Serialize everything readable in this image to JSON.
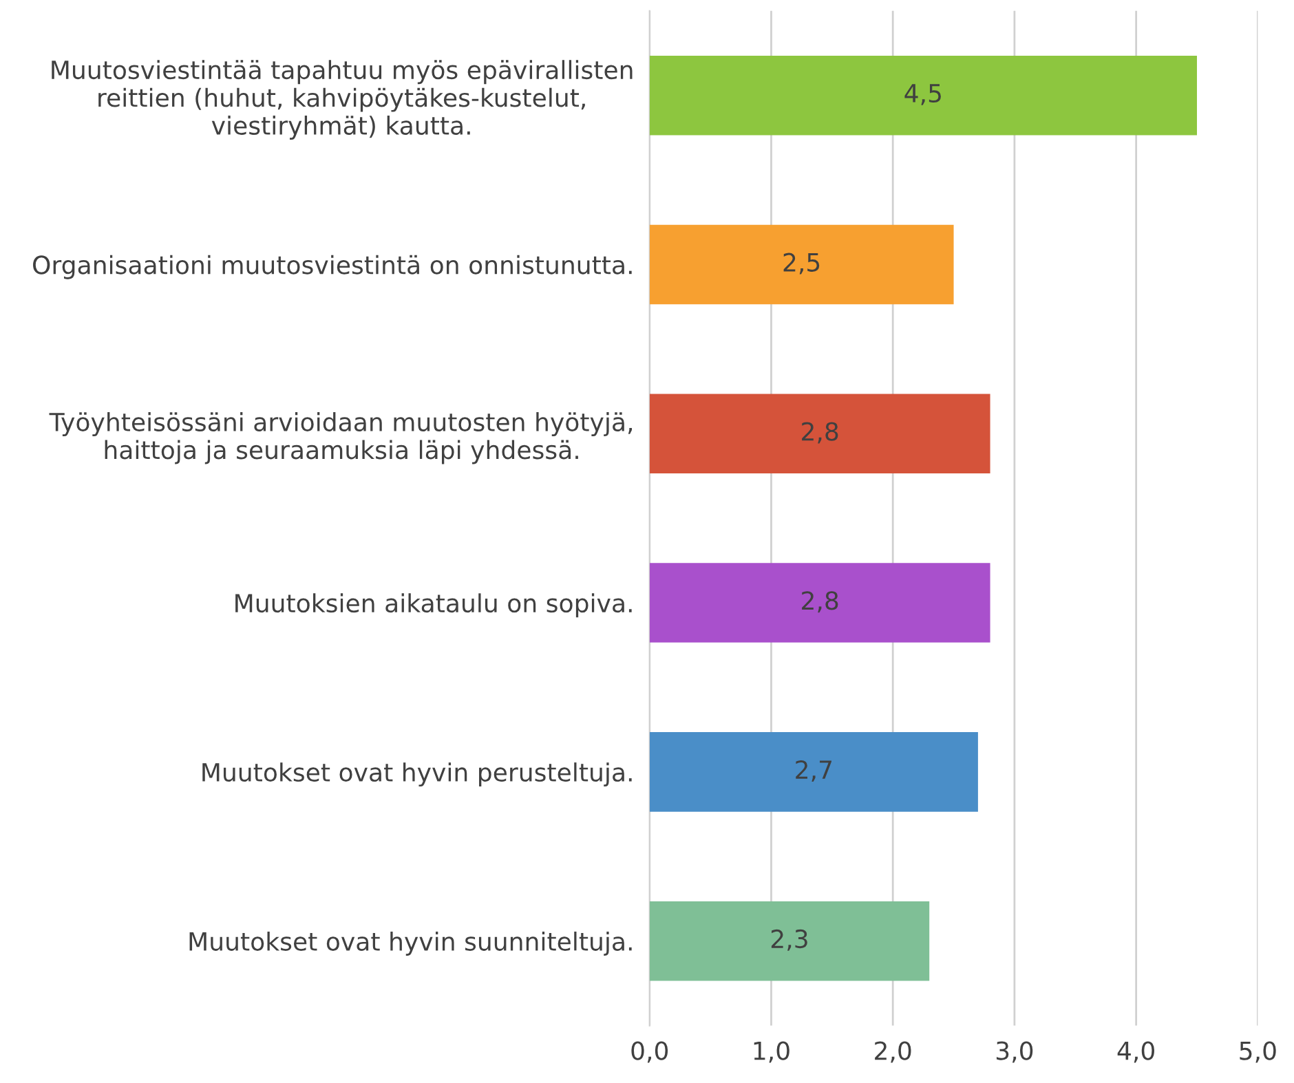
{
  "chart_data": {
    "type": "bar",
    "orientation": "horizontal",
    "categories": [
      "Muutosviestintää tapahtuu myös epävirallisten\nreittien (huhut, kahvipöytäkes-kustelut,\nviestiryhmät) kautta.",
      "Organisaationi muutosviestintä on onnistunutta.",
      "Työyhteisössäni arvioidaan muutosten hyötyjä,\nhaittoja ja seuraamuksia läpi yhdessä.",
      "Muutoksien aikataulu on sopiva.",
      "Muutokset ovat hyvin perusteltuja.",
      "Muutokset ovat hyvin suunniteltuja."
    ],
    "values": [
      4.5,
      2.5,
      2.8,
      2.8,
      2.7,
      2.3
    ],
    "value_labels": [
      "4,5",
      "2,5",
      "2,8",
      "2,8",
      "2,7",
      "2,3"
    ],
    "colors": [
      "#8dc63f",
      "#f7a030",
      "#d5533a",
      "#a950cc",
      "#4a8ec8",
      "#7fbf96"
    ],
    "xlim": [
      0,
      5
    ],
    "xticks": [
      {
        "value": 0,
        "label": "0,0"
      },
      {
        "value": 1,
        "label": "1,0"
      },
      {
        "value": 2,
        "label": "2,0"
      },
      {
        "value": 3,
        "label": "3,0"
      },
      {
        "value": 4,
        "label": "4,0"
      },
      {
        "value": 5,
        "label": "5,0"
      }
    ],
    "grid": "x"
  }
}
